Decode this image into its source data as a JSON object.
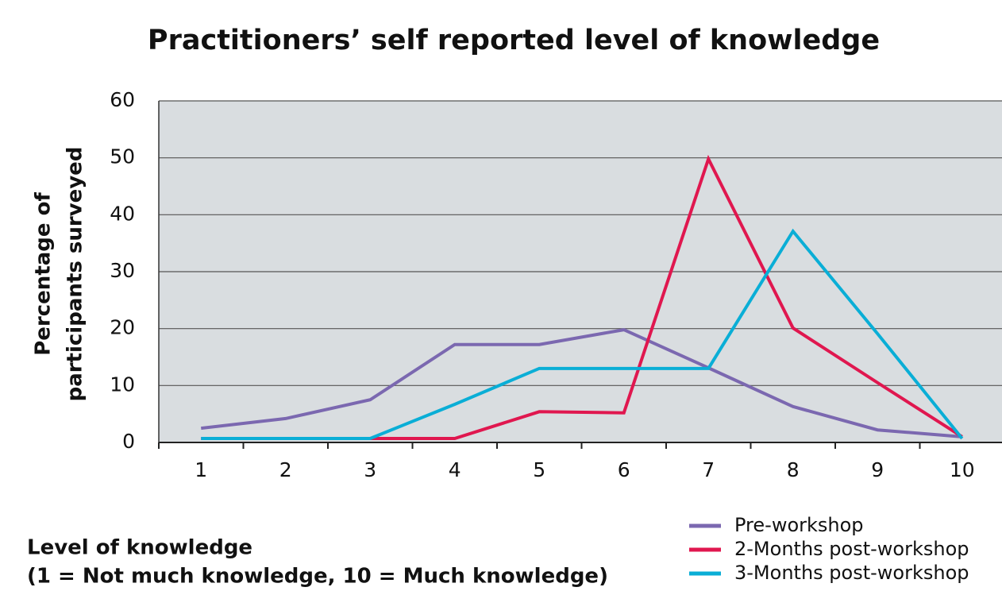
{
  "chart_data": {
    "type": "line",
    "title": "Practitioners’ self reported level of knowledge",
    "y_label": [
      "Percentage of",
      "participants surveyed"
    ],
    "x_label": [
      "Level of knowledge",
      "(1 = Not much knowledge, 10 = Much knowledge)"
    ],
    "categories": [
      "1",
      "2",
      "3",
      "4",
      "5",
      "6",
      "7",
      "8",
      "9",
      "10"
    ],
    "series": [
      {
        "name": "Pre-workshop",
        "color": "#7b68b0",
        "values": [
          2.5,
          4.2,
          7.5,
          17.2,
          17.2,
          19.8,
          13.1,
          6.3,
          2.2,
          1
        ]
      },
      {
        "name": "2-Months post-workshop",
        "color": "#e0174f",
        "values": [
          0.7,
          0.7,
          0.7,
          0.7,
          5.4,
          5.2,
          49.8,
          20.1,
          10.5,
          1
        ]
      },
      {
        "name": "3-Months post-workshop",
        "color": "#0aaed6",
        "values": [
          0.7,
          0.7,
          0.7,
          6.7,
          13,
          13,
          13,
          37.1,
          19.1,
          0.7
        ]
      }
    ],
    "ylim": [
      0,
      60
    ],
    "yticks": [
      0,
      10,
      20,
      30,
      40,
      50,
      60
    ],
    "grid": true,
    "legend": "bottom-right"
  }
}
